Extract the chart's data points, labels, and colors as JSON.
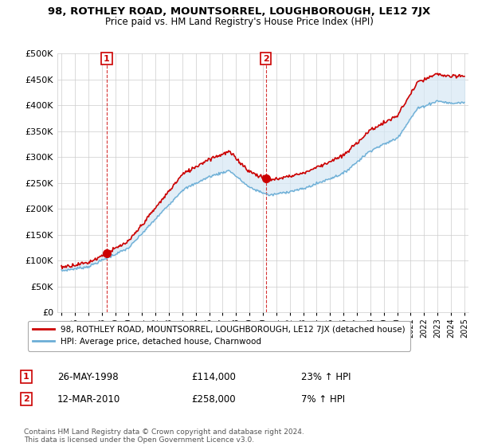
{
  "title": "98, ROTHLEY ROAD, MOUNTSORREL, LOUGHBOROUGH, LE12 7JX",
  "subtitle": "Price paid vs. HM Land Registry's House Price Index (HPI)",
  "ylabel_ticks": [
    "£0",
    "£50K",
    "£100K",
    "£150K",
    "£200K",
    "£250K",
    "£300K",
    "£350K",
    "£400K",
    "£450K",
    "£500K"
  ],
  "ytick_values": [
    0,
    50000,
    100000,
    150000,
    200000,
    250000,
    300000,
    350000,
    400000,
    450000,
    500000
  ],
  "ylim": [
    0,
    500000
  ],
  "hpi_color": "#6baed6",
  "price_color": "#cc0000",
  "sale1_year": 1998.38,
  "sale1_price": 114000,
  "sale1_hpi_pct": "23%",
  "sale2_year": 2010.21,
  "sale2_price": 258000,
  "sale2_hpi_pct": "7%",
  "sale1_date": "26-MAY-1998",
  "sale2_date": "12-MAR-2010",
  "legend_label1": "98, ROTHLEY ROAD, MOUNTSORREL, LOUGHBOROUGH, LE12 7JX (detached house)",
  "legend_label2": "HPI: Average price, detached house, Charnwood",
  "footnote": "Contains HM Land Registry data © Crown copyright and database right 2024.\nThis data is licensed under the Open Government Licence v3.0.",
  "xticklabels": [
    "1995",
    "1996",
    "1997",
    "1998",
    "1999",
    "2000",
    "2001",
    "2002",
    "2003",
    "2004",
    "2005",
    "2006",
    "2007",
    "2008",
    "2009",
    "2010",
    "2011",
    "2012",
    "2013",
    "2014",
    "2015",
    "2016",
    "2017",
    "2018",
    "2019",
    "2020",
    "2021",
    "2022",
    "2023",
    "2024",
    "2025"
  ],
  "background_color": "#ffffff",
  "grid_color": "#cccccc",
  "fill_color": "#ddeeff"
}
